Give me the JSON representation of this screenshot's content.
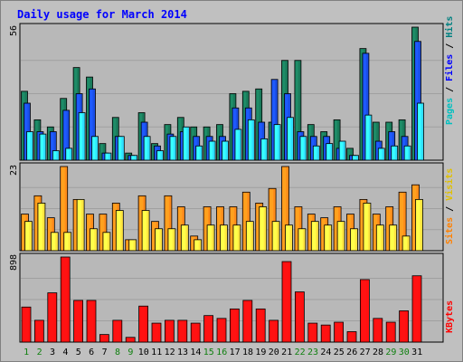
{
  "chart_data": {
    "type": "bar",
    "title": "Daily usage for March 2014",
    "days": [
      "1",
      "2",
      "3",
      "4",
      "5",
      "6",
      "7",
      "8",
      "9",
      "10",
      "11",
      "12",
      "13",
      "14",
      "15",
      "16",
      "17",
      "18",
      "19",
      "20",
      "21",
      "22",
      "23",
      "24",
      "25",
      "26",
      "27",
      "28",
      "29",
      "30",
      "31"
    ],
    "weekend_days": [
      "1",
      "2",
      "8",
      "9",
      "15",
      "16",
      "22",
      "23",
      "29",
      "30"
    ],
    "panels": [
      {
        "id": "hits",
        "max_label": "56",
        "ymax": 56,
        "series": [
          {
            "name": "Hits",
            "color": "#1a7a5a",
            "values": [
              29,
              17,
              14,
              26,
              39,
              35,
              7,
              18,
              3,
              20,
              7,
              15,
              18,
              14,
              14,
              15,
              28,
              29,
              30,
              16,
              42,
              42,
              15,
              12,
              17,
              5,
              47,
              16,
              16,
              17,
              56
            ]
          },
          {
            "name": "Files",
            "color": "#1a4ee6",
            "values": [
              24,
              12,
              12,
              21,
              28,
              30,
              3,
              10,
              2,
              16,
              6,
              11,
              12,
              10,
              10,
              10,
              22,
              22,
              16,
              34,
              28,
              12,
              10,
              10,
              5,
              2,
              45,
              8,
              12,
              10,
              50
            ]
          },
          {
            "name": "Pages",
            "color": "#30e0ff",
            "values": [
              12,
              11,
              4,
              5,
              20,
              10,
              3,
              10,
              2,
              10,
              4,
              10,
              14,
              6,
              8,
              8,
              13,
              17,
              9,
              15,
              18,
              10,
              6,
              7,
              8,
              2,
              19,
              5,
              6,
              6,
              24
            ]
          }
        ]
      },
      {
        "id": "visits",
        "max_label": "23",
        "ymax": 23,
        "series": [
          {
            "name": "Visits",
            "color": "#ff8c1a",
            "values": [
              10,
              15,
              9,
              23,
              14,
              10,
              10,
              13,
              3,
              15,
              8,
              15,
              12,
              4,
              12,
              12,
              12,
              16,
              13,
              17,
              23,
              12,
              10,
              9,
              12,
              10,
              14,
              10,
              12,
              16,
              18
            ]
          },
          {
            "name": "Sites",
            "color": "#ffe640",
            "values": [
              8,
              13,
              5,
              5,
              14,
              6,
              5,
              11,
              3,
              11,
              6,
              6,
              7,
              3,
              7,
              7,
              7,
              8,
              12,
              8,
              7,
              6,
              8,
              7,
              8,
              6,
              13,
              7,
              7,
              4,
              14
            ]
          }
        ]
      },
      {
        "id": "kbytes",
        "max_label": "898",
        "ymax": 898,
        "series": [
          {
            "name": "KBytes",
            "color": "#ff1010",
            "values": [
              370,
              230,
              520,
              898,
              440,
              440,
              80,
              230,
              50,
              380,
              200,
              230,
              230,
              200,
              280,
              250,
              350,
              440,
              350,
              230,
              850,
              530,
              200,
              180,
              210,
              110,
              660,
              250,
              210,
              330,
              700
            ]
          }
        ]
      }
    ],
    "right_labels": {
      "hits_axis": [
        "Pages",
        "Files",
        "Hits"
      ],
      "visits_axis": [
        "Sites",
        "Visits"
      ],
      "kbytes_axis": [
        "KBytes"
      ]
    },
    "colors": {
      "background": "#c0c0c0",
      "plot": "#b8b8b8",
      "title": "#0000ff",
      "axis_text": "#000000",
      "day_weekday": "#000000",
      "day_weekend": "#108010",
      "label_pages": "#00c0c0",
      "label_files": "#0000ff",
      "label_hits": "#008080",
      "label_sites": "#ff8000",
      "label_visits": "#e0c000",
      "label_kbytes": "#ff0000",
      "separator": "#000000"
    }
  }
}
